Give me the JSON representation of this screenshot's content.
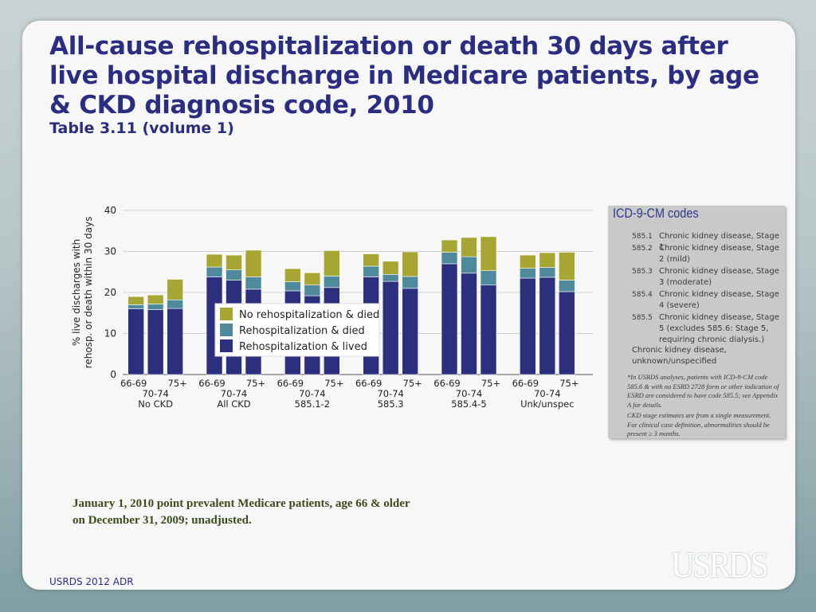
{
  "slide": {
    "title": "All-cause rehospitalization or death 30 days after live hospital discharge in Medicare patients, by age & CKD diagnosis code, 2010",
    "subtitle": "Table 3.11 (volume 1)",
    "note": "January 1, 2010 point prevalent Medicare patients, age 66 & older on December 31, 2009; unadjusted.",
    "footer": "USRDS 2012 ADR",
    "logo": "USRDS"
  },
  "icd_box": {
    "title": "ICD-9-CM codes",
    "items": [
      {
        "code": "585.1",
        "desc": "Chronic kidney disease, Stage 1"
      },
      {
        "code": "585.2",
        "desc": "Chronic kidney disease, Stage 2 (mild)"
      },
      {
        "code": "585.3",
        "desc": "Chronic kidney disease, Stage 3 (moderate)"
      },
      {
        "code": "585.4",
        "desc": "Chronic kidney disease, Stage 4 (severe)"
      },
      {
        "code": "585.5",
        "desc": "Chronic kidney disease, Stage 5 (excludes 585.6: Stage 5, requiring chronic dialysis.)"
      }
    ],
    "unknown": "Chronic kidney disease, unknown/unspecified",
    "footnote1": "*In USRDS analyses, patients with ICD-9-CM code 585.6 & with no ESRD 2728 form or other indication of ESRD are considered to have code 585.5; see Appendix A for details.",
    "footnote2": "CKD stage estimates are from a single measurement. For clinical case definition, abnormalities should be present ≥ 3 months."
  },
  "colors": {
    "lived": "#2b2f7e",
    "rehosp_died": "#4e8a9c",
    "no_rehosp_died": "#a8a632",
    "grid": "#d0d0d0"
  },
  "chart_data": {
    "type": "bar",
    "stacked": true,
    "ylabel": "% live discharges with rehosp. or death within 30 days",
    "ylim": [
      0,
      40
    ],
    "yticks": [
      0,
      10,
      20,
      30,
      40
    ],
    "legend_position": "center",
    "groups": [
      {
        "label": "No CKD",
        "ages": [
          "66-69",
          "70-74",
          "75+"
        ]
      },
      {
        "label": "All CKD",
        "ages": [
          "66-69",
          "70-74",
          "75+"
        ]
      },
      {
        "label": "585.1-2",
        "ages": [
          "66-69",
          "70-74",
          "75+"
        ]
      },
      {
        "label": "585.3",
        "ages": [
          "66-69",
          "70-74",
          "75+"
        ]
      },
      {
        "label": "585.4-5",
        "ages": [
          "66-69",
          "70-74",
          "75+"
        ]
      },
      {
        "label": "Unk/unspec",
        "ages": [
          "66-69",
          "70-74",
          "75+"
        ]
      }
    ],
    "series": [
      {
        "name": "Rehospitalization & lived",
        "key": "lived",
        "values": [
          16.0,
          15.8,
          16.1,
          23.8,
          23.0,
          20.8,
          20.4,
          19.2,
          21.2,
          23.8,
          22.7,
          21.0,
          27.0,
          24.7,
          21.8,
          23.5,
          23.7,
          20.2
        ]
      },
      {
        "name": "Rehospitalization & died",
        "key": "rehosp_died",
        "values": [
          1.0,
          1.4,
          2.1,
          2.4,
          2.5,
          3.0,
          2.2,
          2.6,
          2.8,
          2.6,
          1.7,
          2.9,
          2.8,
          4.0,
          3.5,
          2.4,
          2.4,
          2.8
        ]
      },
      {
        "name": "No rehospitalization & died",
        "key": "no_rehosp_died",
        "values": [
          2.0,
          2.2,
          5.0,
          3.1,
          3.6,
          6.5,
          3.2,
          3.0,
          6.2,
          3.0,
          3.2,
          6.0,
          3.0,
          4.7,
          8.3,
          3.2,
          3.6,
          6.8
        ]
      }
    ]
  }
}
